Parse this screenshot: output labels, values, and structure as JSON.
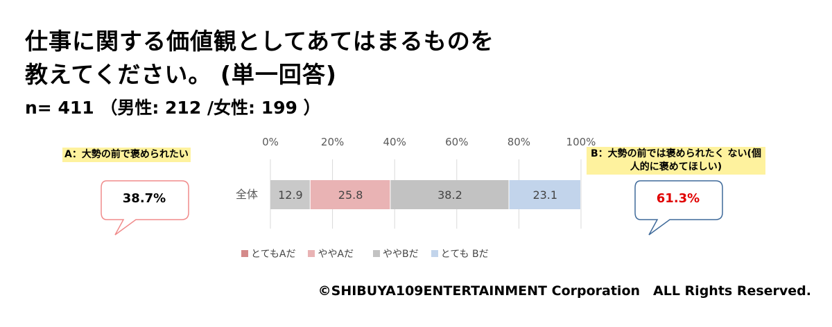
{
  "title_line1": "仕事に関する価値観としてあてはまるものを",
  "title_line2": "教えてください。 (単一回答)",
  "sample": "n= 411 （男性: 212 /女性: 199 ）",
  "label_a": "A：大勢の前で褒められたい",
  "label_b": "B：大勢の前では褒められたく ない(個人的に褒めてほしい)",
  "total_a": "38.7%",
  "total_b": "61.3%",
  "copyright": "©SHIBUYA109ENTERTAINMENT Corporation　ALL Rights Reserved.",
  "colors": {
    "bubble_a": "#f08b8b",
    "bubble_b": "#3f6a9a",
    "value_b": "#e00000",
    "highlight": "#fef29e"
  },
  "chart_data": {
    "type": "bar",
    "orientation": "horizontal",
    "stacked": true,
    "categories": [
      "全体"
    ],
    "series": [
      {
        "name": "とてもAだ",
        "values": [
          12.9
        ],
        "color": "#c9c9c9"
      },
      {
        "name": "ややAだ",
        "values": [
          25.8
        ],
        "color": "#e9b3b4"
      },
      {
        "name": "ややBだ",
        "values": [
          38.2
        ],
        "color": "#c2c2c2"
      },
      {
        "name": "とても Bだ",
        "values": [
          23.1
        ],
        "color": "#c2d4eb"
      }
    ],
    "xlim": [
      0,
      100
    ],
    "x_ticks": [
      "0%",
      "20%",
      "40%",
      "60%",
      "80%",
      "100%"
    ],
    "legend_position": "bottom",
    "legend_colors": [
      "#d48a8a",
      "#e9b3b4",
      "#c2c2c2",
      "#c2d4eb"
    ],
    "grid": true
  }
}
